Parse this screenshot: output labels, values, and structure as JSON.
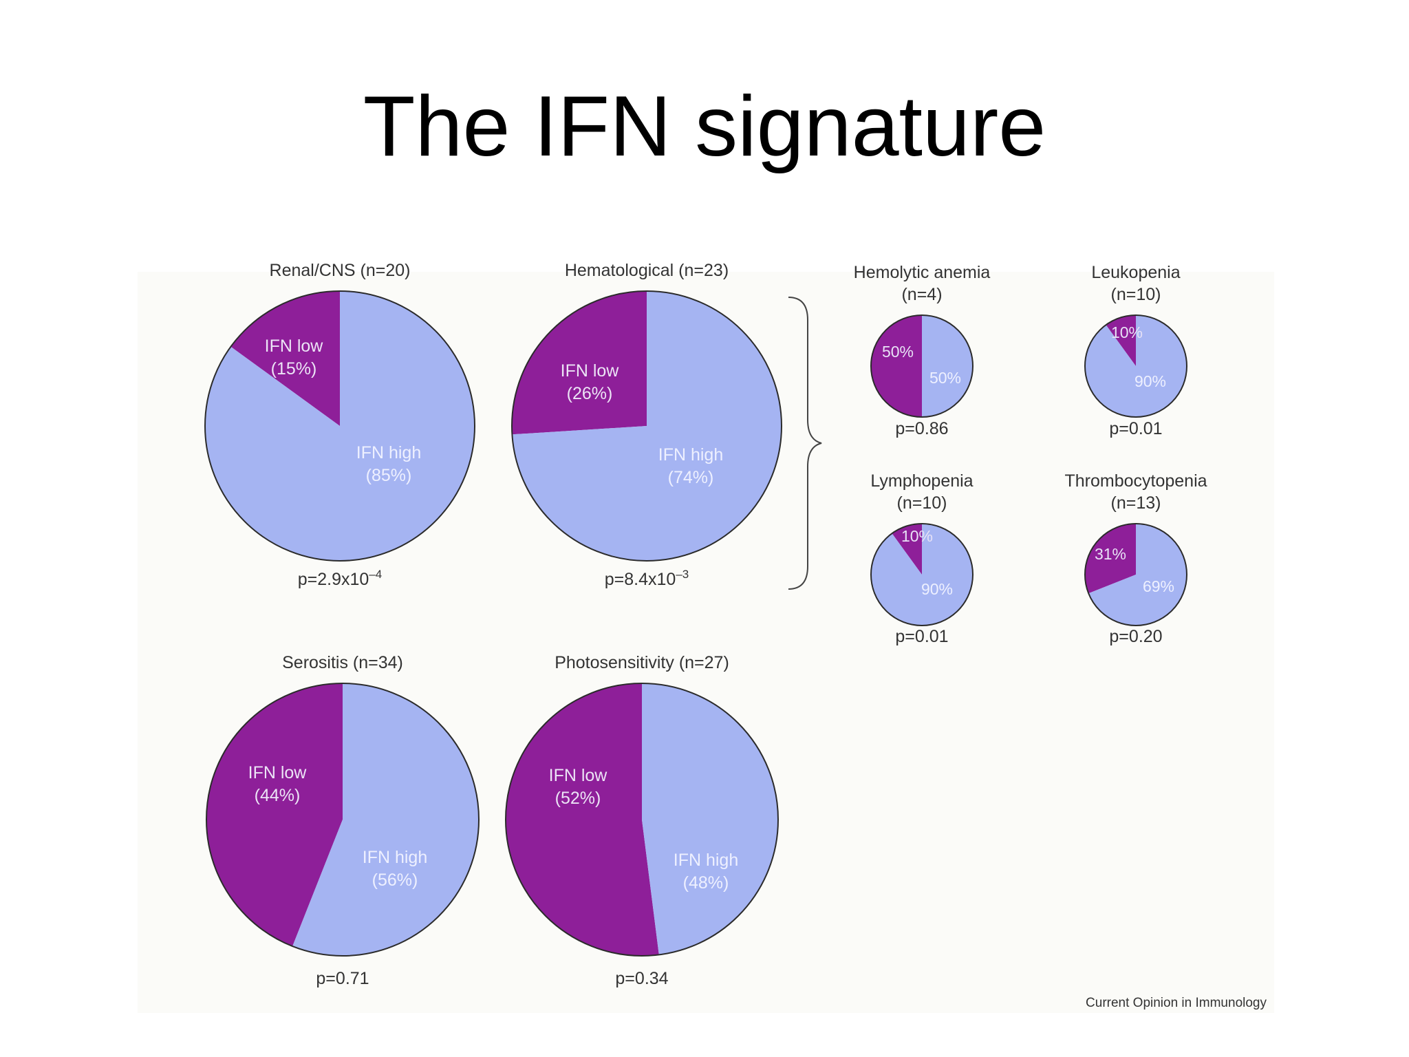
{
  "slide": {
    "title": "The IFN signature"
  },
  "colors": {
    "ifn_low": "#8e1f99",
    "ifn_high": "#a5b4f2",
    "outline": "#2b2b2b",
    "text": "#333333",
    "panel": "#fbfbf8"
  },
  "chart_data": [
    {
      "type": "pie",
      "title": "Renal/CNS (n=20)",
      "categories": [
        "IFN low",
        "IFN high"
      ],
      "values": [
        15,
        85
      ],
      "slice_labels": [
        "IFN low",
        "IFN high"
      ],
      "slice_pcts": [
        "(15%)",
        "(85%)"
      ],
      "p_text": "p=2.9x10",
      "p_exp": "–4"
    },
    {
      "type": "pie",
      "title": "Hematological (n=23)",
      "categories": [
        "IFN low",
        "IFN high"
      ],
      "values": [
        26,
        74
      ],
      "slice_labels": [
        "IFN low",
        "IFN high"
      ],
      "slice_pcts": [
        "(26%)",
        "(74%)"
      ],
      "p_text": "p=8.4x10",
      "p_exp": "–3"
    },
    {
      "type": "pie",
      "title": "Serositis (n=34)",
      "categories": [
        "IFN low",
        "IFN high"
      ],
      "values": [
        44,
        56
      ],
      "slice_labels": [
        "IFN low",
        "IFN high"
      ],
      "slice_pcts": [
        "(44%)",
        "(56%)"
      ],
      "p_text": "p=0.71",
      "p_exp": ""
    },
    {
      "type": "pie",
      "title": "Photosensitivity (n=27)",
      "categories": [
        "IFN low",
        "IFN high"
      ],
      "values": [
        52,
        48
      ],
      "slice_labels": [
        "IFN low",
        "IFN high"
      ],
      "slice_pcts": [
        "(52%)",
        "(48%)"
      ],
      "p_text": "p=0.34",
      "p_exp": ""
    },
    {
      "type": "pie",
      "title_lines": [
        "Hemolytic anemia",
        "(n=4)"
      ],
      "categories": [
        "IFN low",
        "IFN high"
      ],
      "values": [
        50,
        50
      ],
      "slice_labels": [
        "50%",
        "50%"
      ],
      "p_text": "p=0.86",
      "p_exp": ""
    },
    {
      "type": "pie",
      "title_lines": [
        "Leukopenia",
        "(n=10)"
      ],
      "categories": [
        "IFN low",
        "IFN high"
      ],
      "values": [
        10,
        90
      ],
      "slice_labels": [
        "10%",
        "90%"
      ],
      "p_text": "p=0.01",
      "p_exp": ""
    },
    {
      "type": "pie",
      "title_lines": [
        "Lymphopenia",
        "(n=10)"
      ],
      "categories": [
        "IFN low",
        "IFN high"
      ],
      "values": [
        10,
        90
      ],
      "slice_labels": [
        "10%",
        "90%"
      ],
      "p_text": "p=0.01",
      "p_exp": ""
    },
    {
      "type": "pie",
      "title_lines": [
        "Thrombocytopenia",
        "(n=13)"
      ],
      "categories": [
        "IFN low",
        "IFN high"
      ],
      "values": [
        31,
        69
      ],
      "slice_labels": [
        "31%",
        "69%"
      ],
      "p_text": "p=0.20",
      "p_exp": ""
    }
  ],
  "credit": "Current Opinion in Immunology"
}
